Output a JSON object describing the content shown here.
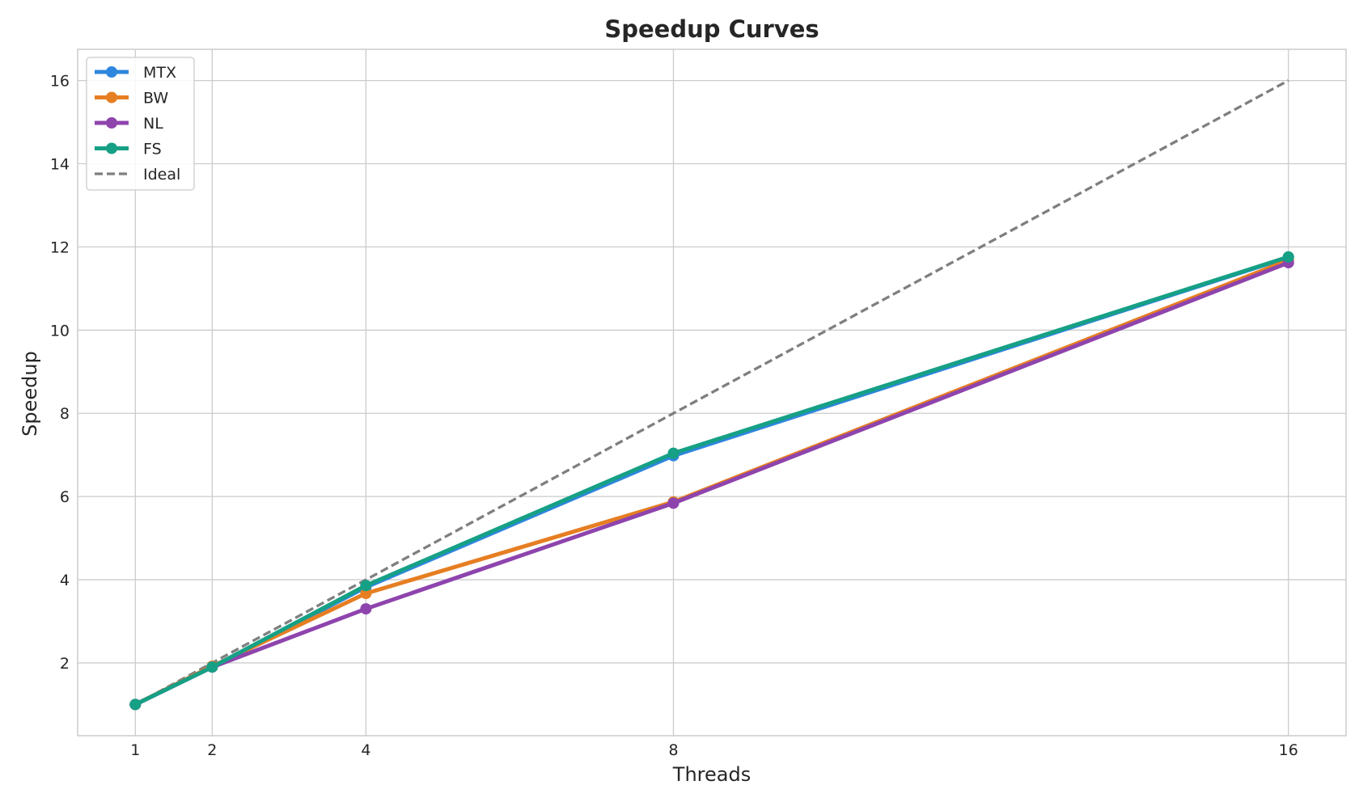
{
  "chart_data": {
    "type": "line",
    "title": "Speedup Curves",
    "xlabel": "Threads",
    "ylabel": "Speedup",
    "x": [
      1,
      2,
      4,
      8,
      16
    ],
    "xticks": [
      "1",
      "2",
      "4",
      "8",
      "16"
    ],
    "yticks": [
      "2",
      "4",
      "6",
      "8",
      "10",
      "12",
      "14",
      "16"
    ],
    "xlim": [
      0.25,
      16.75
    ],
    "ylim": [
      0.25,
      16.75
    ],
    "grid": true,
    "legend_position": "top-left",
    "series": [
      {
        "name": "MTX",
        "color": "#2e86de",
        "values": [
          1.0,
          1.9,
          3.82,
          6.98,
          11.75
        ],
        "style": "solid",
        "marker": "circle"
      },
      {
        "name": "BW",
        "color": "#e67e22",
        "values": [
          1.0,
          1.92,
          3.67,
          5.87,
          11.68
        ],
        "style": "solid",
        "marker": "circle"
      },
      {
        "name": "NL",
        "color": "#8e44ad",
        "values": [
          1.0,
          1.9,
          3.3,
          5.84,
          11.62
        ],
        "style": "solid",
        "marker": "circle"
      },
      {
        "name": "FS",
        "color": "#16a085",
        "values": [
          1.0,
          1.9,
          3.86,
          7.04,
          11.76
        ],
        "style": "solid",
        "marker": "circle"
      },
      {
        "name": "Ideal",
        "color": "#7f7f7f",
        "values": [
          1,
          2,
          4,
          8,
          16
        ],
        "style": "dashed",
        "marker": "none"
      }
    ]
  }
}
